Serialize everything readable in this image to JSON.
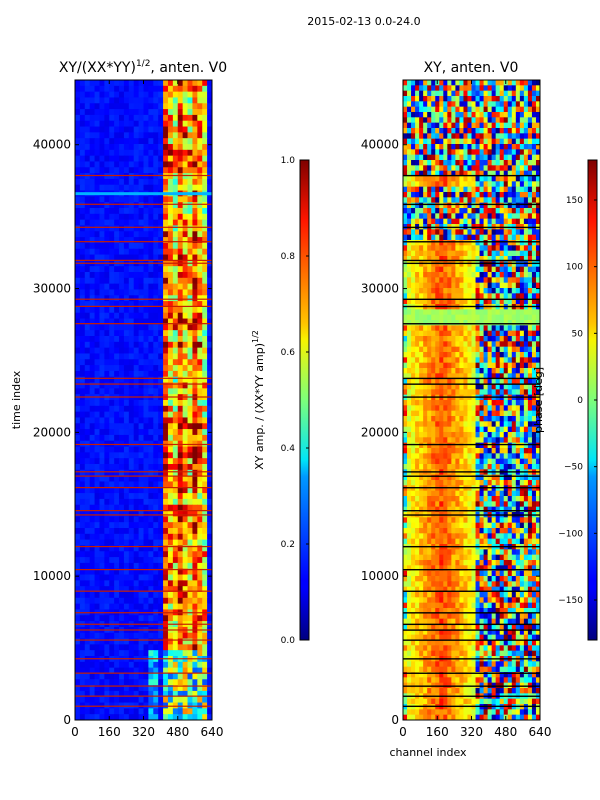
{
  "suptitle": "2015-02-13 0.0-24.0",
  "chart_data": [
    {
      "type": "heatmap",
      "title": "XY/(XX*YY)^{1/2}, anten. V0",
      "title_main": "XY/(XX*YY)",
      "title_sup": "1/2",
      "title_tail": ", anten. V0",
      "xlabel": "",
      "ylabel": "time index",
      "xlim": [
        0,
        640
      ],
      "ylim": [
        0,
        44500
      ],
      "xticks": [
        0,
        160,
        320,
        480,
        640
      ],
      "yticks": [
        0,
        10000,
        20000,
        30000,
        40000
      ],
      "colorbar": {
        "label": "XY amp. / (XX*YY amp)^{1/2}",
        "label_main": "XY amp. / (XX*YY amp)",
        "label_sup": "1/2",
        "range": [
          0.0,
          1.0
        ],
        "ticks": [
          "0.0",
          "0.2",
          "0.4",
          "0.6",
          "0.8",
          "1.0"
        ],
        "tick_values": [
          0.0,
          0.2,
          0.4,
          0.6,
          0.8,
          1.0
        ]
      },
      "features": {
        "background_value": 0.1,
        "active_band_channels": [
          400,
          620
        ],
        "line_rows": [
          1000,
          1700,
          2400,
          3300,
          4300,
          5600,
          6300,
          6700,
          7500,
          9000,
          10500,
          12100,
          14300,
          14600,
          16200,
          17000,
          17300,
          19200,
          22500,
          23400,
          23800,
          27600,
          28800,
          29300,
          31800,
          32000,
          33300,
          34300,
          35900,
          37900
        ]
      }
    },
    {
      "type": "heatmap",
      "title": "XY, anten. V0",
      "xlabel": "channel index",
      "ylabel": "",
      "xlim": [
        0,
        640
      ],
      "ylim": [
        0,
        44500
      ],
      "xticks": [
        0,
        160,
        320,
        480,
        640
      ],
      "yticks": [
        0,
        10000,
        20000,
        30000,
        40000
      ],
      "colorbar": {
        "label": "phase [deg]",
        "range": [
          -180,
          180
        ],
        "ticks": [
          "−150",
          "−100",
          "−50",
          "0",
          "50",
          "100",
          "150"
        ],
        "tick_values": [
          -150,
          -100,
          -50,
          0,
          50,
          100,
          150
        ]
      },
      "features": {
        "flat_band_rows": [
          27500,
          28500
        ],
        "line_rows": [
          1000,
          1700,
          2400,
          3300,
          4300,
          5600,
          6300,
          6700,
          7500,
          9000,
          10500,
          12100,
          14300,
          14600,
          16200,
          17000,
          17300,
          19200,
          22500,
          23400,
          23800,
          27600,
          28800,
          29300,
          31800,
          32000,
          33300,
          34300,
          35900,
          37900
        ]
      }
    }
  ]
}
